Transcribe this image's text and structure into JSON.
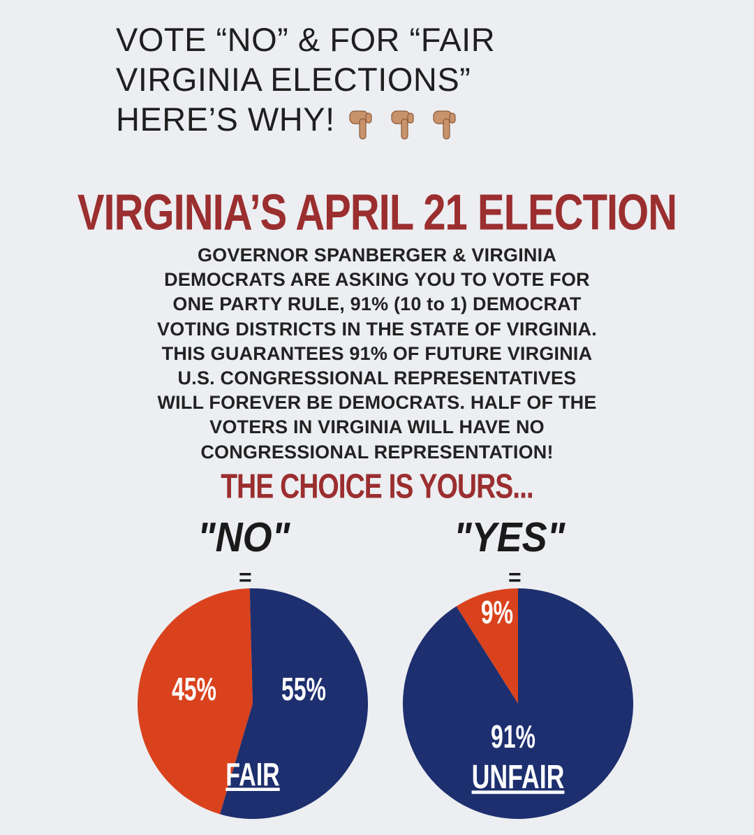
{
  "header": {
    "line1": "VOTE “NO” &  FOR “FAIR",
    "line2": "VIRGINIA ELECTIONS”",
    "line3": "HERE’S WHY!",
    "emoji": [
      "backhand-index-pointing-down",
      "backhand-index-pointing-down",
      "backhand-index-pointing-down"
    ]
  },
  "election_title": "VIRGINIA’S APRIL 21 ELECTION",
  "body_lines": [
    "GOVERNOR SPANBERGER & VIRGINIA",
    "DEMOCRATS ARE ASKING YOU TO VOTE FOR",
    "ONE PARTY RULE, 91% (10 to 1) DEMOCRAT",
    "VOTING DISTRICTS IN THE STATE OF VIRGINIA.",
    "THIS GUARANTEES 91% OF FUTURE VIRGINIA",
    "U.S. CONGRESSIONAL REPRESENTATIVES",
    "WILL FOREVER BE DEMOCRATS. HALF OF THE",
    "VOTERS IN VIRGINIA WILL HAVE NO",
    "CONGRESSIONAL REPRESENTATION!"
  ],
  "choice_text": "THE CHOICE IS YOURS...",
  "options": [
    {
      "label": "\"NO\"",
      "equals": "="
    },
    {
      "label": "\"YES\"",
      "equals": "="
    }
  ],
  "colors": {
    "red": "#d9421d",
    "blue": "#1d2f6f",
    "title_red": "#9b2e2f",
    "background": "#eceef1"
  },
  "chart_data": [
    {
      "type": "pie",
      "slices": [
        {
          "label": "45%",
          "value": 45,
          "color": "#d9421d"
        },
        {
          "label": "55%",
          "value": 55,
          "color": "#1d2f6f"
        }
      ],
      "caption": "FAIR"
    },
    {
      "type": "pie",
      "slices": [
        {
          "label": "9%",
          "value": 9,
          "color": "#d9421d"
        },
        {
          "label": "91%",
          "value": 91,
          "color": "#1d2f6f"
        }
      ],
      "caption": "UNFAIR"
    }
  ]
}
